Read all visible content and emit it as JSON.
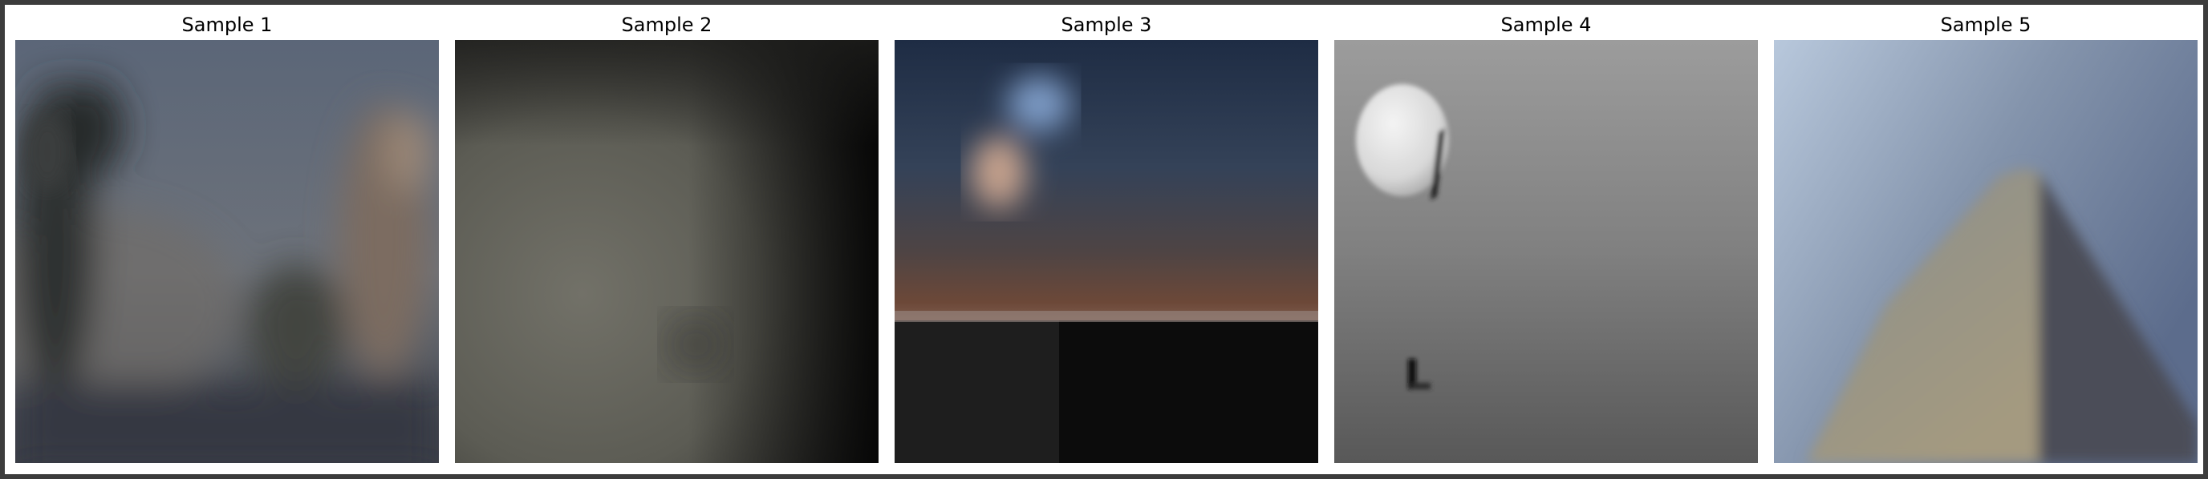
{
  "figure": {
    "samples": [
      {
        "title": "Sample 1"
      },
      {
        "title": "Sample 2"
      },
      {
        "title": "Sample 3"
      },
      {
        "title": "Sample 4"
      },
      {
        "title": "Sample 5"
      }
    ]
  }
}
